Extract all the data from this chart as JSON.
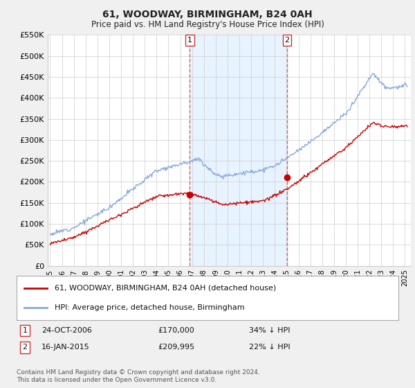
{
  "title": "61, WOODWAY, BIRMINGHAM, B24 0AH",
  "subtitle": "Price paid vs. HM Land Registry's House Price Index (HPI)",
  "legend_line1": "61, WOODWAY, BIRMINGHAM, B24 0AH (detached house)",
  "legend_line2": "HPI: Average price, detached house, Birmingham",
  "footnote": "Contains HM Land Registry data © Crown copyright and database right 2024.\nThis data is licensed under the Open Government Licence v3.0.",
  "sale1_label": "1",
  "sale1_date": "24-OCT-2006",
  "sale1_price": "£170,000",
  "sale1_hpi": "34% ↓ HPI",
  "sale1_year": 2006.81,
  "sale1_value": 170000,
  "sale2_label": "2",
  "sale2_date": "16-JAN-2015",
  "sale2_price": "£209,995",
  "sale2_hpi": "22% ↓ HPI",
  "sale2_year": 2015.04,
  "sale2_value": 209995,
  "price_color": "#cc0000",
  "hpi_color": "#88aadd",
  "marker_color": "#cc0000",
  "vline_color": "#dd6666",
  "highlight_color": "#ddeeff",
  "ylim": [
    0,
    550000
  ],
  "yticks": [
    0,
    50000,
    100000,
    150000,
    200000,
    250000,
    300000,
    350000,
    400000,
    450000,
    500000,
    550000
  ],
  "ylabel_fmt": [
    "£0",
    "£50K",
    "£100K",
    "£150K",
    "£200K",
    "£250K",
    "£300K",
    "£350K",
    "£400K",
    "£450K",
    "£500K",
    "£550K"
  ],
  "xmin": 1994.8,
  "xmax": 2025.5,
  "background_color": "#f0f0f0",
  "plot_bg": "#ffffff"
}
